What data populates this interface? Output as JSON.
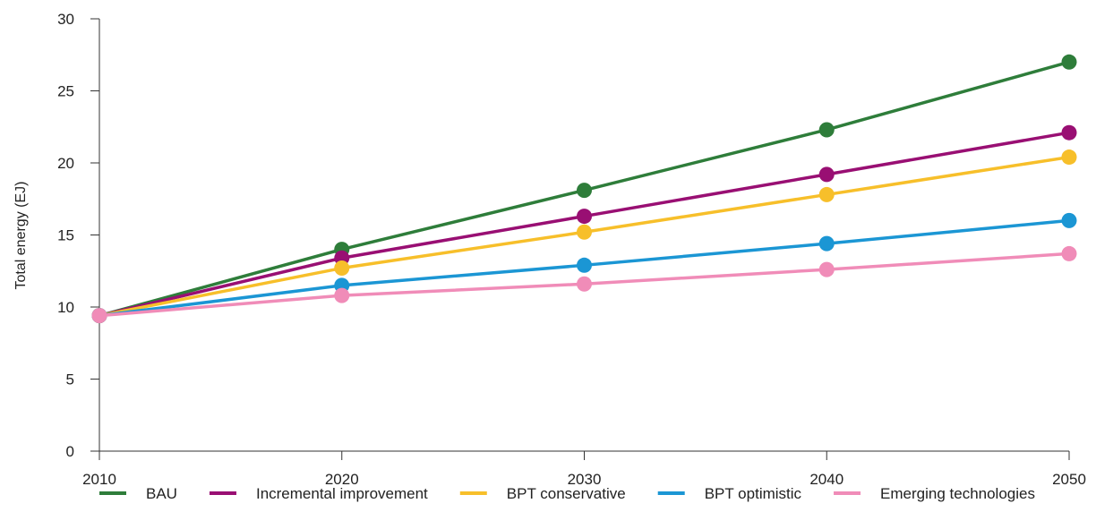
{
  "chart_data": {
    "type": "line",
    "title": "",
    "xlabel": "",
    "ylabel": "Total energy (EJ)",
    "x": [
      2010,
      2020,
      2030,
      2040,
      2050
    ],
    "xlim": [
      2010,
      2050
    ],
    "ylim": [
      0,
      30
    ],
    "yticks": [
      0,
      5,
      10,
      15,
      20,
      25,
      30
    ],
    "xticks": [
      2010,
      2020,
      2030,
      2040,
      2050
    ],
    "grid": false,
    "legend_position": "bottom",
    "series": [
      {
        "name": "BAU",
        "color": "#2e7d3a",
        "values": [
          9.4,
          14.0,
          18.1,
          22.3,
          27.0
        ]
      },
      {
        "name": "Incremental improvement",
        "color": "#990f73",
        "values": [
          9.4,
          13.4,
          16.3,
          19.2,
          22.1
        ]
      },
      {
        "name": "BPT conservative",
        "color": "#f7bf2a",
        "values": [
          9.4,
          12.7,
          15.2,
          17.8,
          20.4
        ]
      },
      {
        "name": "BPT optimistic",
        "color": "#1b96d4",
        "values": [
          9.4,
          11.5,
          12.9,
          14.4,
          16.0
        ]
      },
      {
        "name": "Emerging technologies",
        "color": "#f08cb8",
        "values": [
          9.4,
          10.8,
          11.6,
          12.6,
          13.7
        ]
      }
    ]
  }
}
